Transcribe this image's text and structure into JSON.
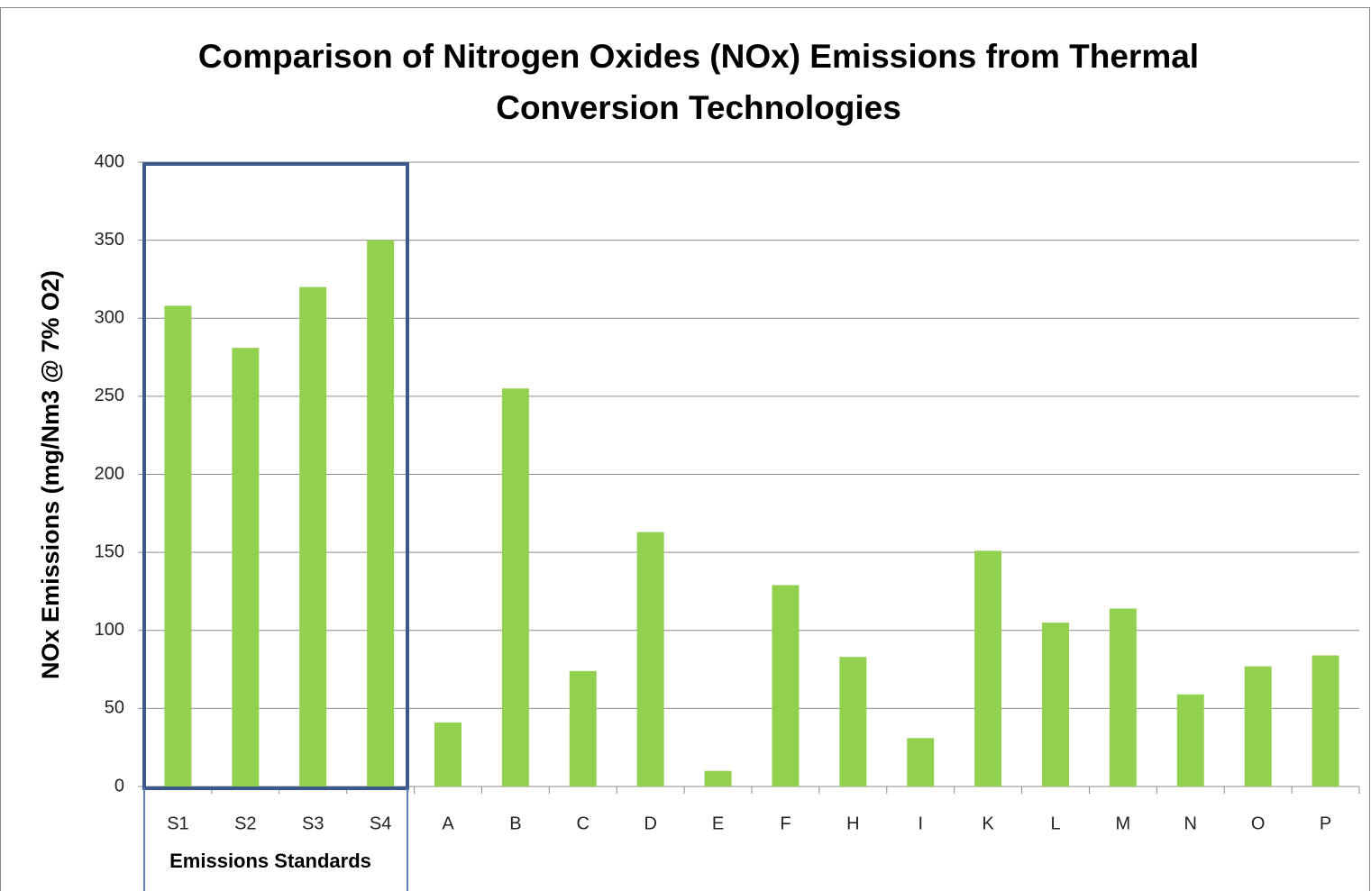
{
  "chart_data": {
    "type": "bar",
    "title": "Comparison of Nitrogen Oxides (NOx) Emissions from Thermal Conversion Technologies",
    "y_label": "NOx Emissions (mg/Nm3 @ 7% O2)",
    "annotation": "Emissions Standards",
    "categories": [
      "S1",
      "S2",
      "S3",
      "S4",
      "A",
      "B",
      "C",
      "D",
      "E",
      "F",
      "H",
      "I",
      "K",
      "L",
      "M",
      "N",
      "O",
      "P"
    ],
    "values": [
      308,
      281,
      320,
      350,
      41,
      255,
      74,
      163,
      10,
      129,
      83,
      31,
      151,
      105,
      114,
      59,
      77,
      84
    ],
    "color": "#92d050",
    "ylim": [
      0,
      400
    ],
    "yticks": [
      0,
      50,
      100,
      150,
      200,
      250,
      300,
      350,
      400
    ],
    "grid": true
  }
}
